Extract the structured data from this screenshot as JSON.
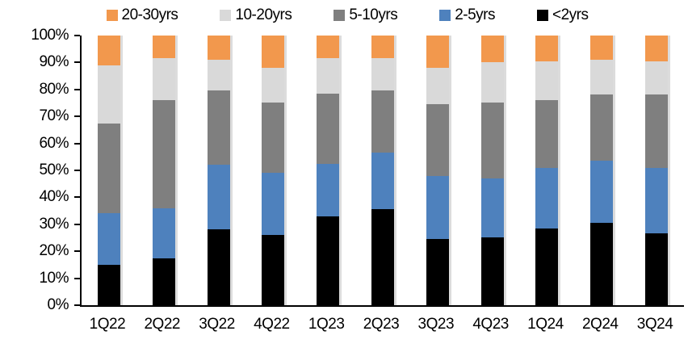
{
  "chart_data": {
    "type": "bar",
    "stacking": "percent",
    "title": "",
    "xlabel": "",
    "ylabel": "",
    "categories": [
      "1Q22",
      "2Q22",
      "3Q22",
      "4Q22",
      "1Q23",
      "2Q23",
      "3Q23",
      "4Q23",
      "1Q24",
      "2Q24",
      "3Q24"
    ],
    "series": [
      {
        "name": "20-30yrs",
        "color": "#F2984D",
        "values": [
          11,
          8.5,
          9,
          12,
          8.5,
          8.5,
          12,
          10,
          9.5,
          9,
          9.5
        ]
      },
      {
        "name": "10-20yrs",
        "color": "#D9D9D9",
        "values": [
          21.5,
          15.5,
          11.5,
          13,
          13,
          12,
          13.5,
          15,
          14.5,
          13,
          12.5
        ]
      },
      {
        "name": "5-10yrs",
        "color": "#7F7F7F",
        "values": [
          33.5,
          40,
          27.5,
          26,
          26,
          23,
          26.5,
          28,
          25,
          24.5,
          27
        ]
      },
      {
        "name": "2-5yrs",
        "color": "#4E81BD",
        "values": [
          19,
          18.5,
          24,
          23,
          19.5,
          21,
          23.5,
          22,
          22.5,
          23,
          24.5
        ]
      },
      {
        "name": "<2yrs",
        "color": "#000000",
        "values": [
          15,
          17.5,
          28,
          26,
          33,
          35.5,
          24.5,
          25,
          28.5,
          30.5,
          26.5
        ]
      }
    ],
    "ylim": [
      0,
      100
    ],
    "ytick_step": 10,
    "ytick_labels": [
      "0%",
      "10%",
      "20%",
      "30%",
      "40%",
      "50%",
      "60%",
      "70%",
      "80%",
      "90%",
      "100%"
    ],
    "legend_position": "top",
    "grid": false,
    "axis_color": "#000000"
  }
}
